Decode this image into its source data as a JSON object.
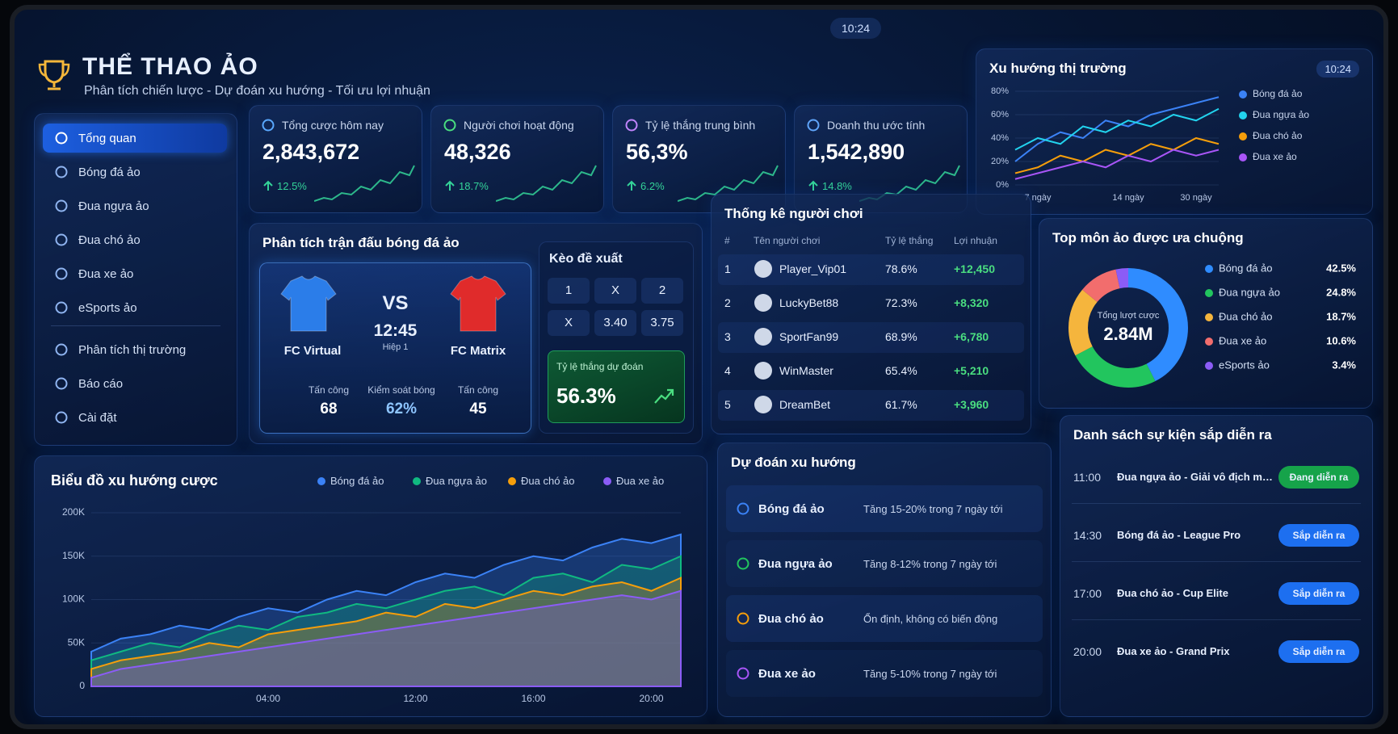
{
  "header": {
    "title": "THỂ THAO ẢO",
    "subtitle": "Phân tích chiến lược - Dự đoán xu hướng - Tối ưu lợi nhuận",
    "clock": "10:24"
  },
  "sidebar": {
    "items": [
      "Tổng quan",
      "Bóng đá ảo",
      "Đua ngựa ảo",
      "Đua chó ảo",
      "Đua xe ảo",
      "eSports ảo",
      "Phân tích thị trường",
      "Báo cáo",
      "Cài đặt"
    ]
  },
  "kpis": [
    {
      "label": "Tổng cược hôm nay",
      "value": "2,843,672",
      "change": "12.5%"
    },
    {
      "label": "Người chơi hoạt động",
      "value": "48,326",
      "change": "18.7%"
    },
    {
      "label": "Tỷ lệ thắng trung bình",
      "value": "56,3%",
      "change": "6.2%"
    },
    {
      "label": "Doanh thu ước tính",
      "value": "1,542,890",
      "change": "14.8%"
    }
  ],
  "market_trend": {
    "type": "line",
    "title": "Xu hướng thị trường",
    "clock": "10:24",
    "categories": [
      null,
      "7 ngày",
      null,
      null,
      null,
      "14 ngày",
      null,
      null,
      "30 ngày",
      null
    ],
    "ylim": [
      0,
      80
    ],
    "yticks": [
      {
        "value": 0,
        "label": "0%"
      },
      {
        "value": 20,
        "label": "20%"
      },
      {
        "value": 40,
        "label": "40%"
      },
      {
        "value": 60,
        "label": "60%"
      },
      {
        "value": 80,
        "label": "80%"
      }
    ],
    "grid": true,
    "series": [
      {
        "name": "Bóng đá ảo",
        "color": "#3b82f6",
        "values": [
          20,
          35,
          45,
          40,
          55,
          50,
          60,
          65,
          70,
          75
        ]
      },
      {
        "name": "Đua ngựa ảo",
        "color": "#22d3ee",
        "values": [
          30,
          40,
          35,
          50,
          45,
          55,
          50,
          60,
          55,
          65
        ]
      },
      {
        "name": "Đua chó ảo",
        "color": "#f59e0b",
        "values": [
          10,
          15,
          25,
          20,
          30,
          25,
          35,
          30,
          40,
          35
        ]
      },
      {
        "name": "Đua xe ảo",
        "color": "#a855f7",
        "values": [
          5,
          10,
          15,
          20,
          15,
          25,
          20,
          30,
          25,
          30
        ]
      }
    ]
  },
  "match": {
    "title": "Phân tích trận đấu bóng đá ảo",
    "home": "FC Virtual",
    "away": "FC Matrix",
    "vs": "VS",
    "time": "12:45",
    "period": "Hiệp 1",
    "stats": [
      {
        "label": "Tấn công",
        "value": "68"
      },
      {
        "label": "Kiểm soát bóng",
        "value": "62%"
      },
      {
        "label": "Tấn công",
        "value": "45"
      }
    ]
  },
  "odds": {
    "title": "Kèo đề xuất",
    "grid": [
      [
        "1",
        "X",
        "2"
      ],
      [
        "X",
        "3.40",
        "3.75"
      ]
    ],
    "prediction_label": "Tỷ lệ thắng dự đoán",
    "prediction": "56.3%"
  },
  "players": {
    "title": "Thống kê người chơi",
    "columns": [
      "#",
      "Tên người chơi",
      "Tỷ lệ thắng",
      "Lợi nhuận"
    ],
    "rows": [
      [
        "1",
        "Player_Vip01",
        "78.6%",
        "+12,450"
      ],
      [
        "2",
        "LuckyBet88",
        "72.3%",
        "+8,320"
      ],
      [
        "3",
        "SportFan99",
        "68.9%",
        "+6,780"
      ],
      [
        "4",
        "WinMaster",
        "65.4%",
        "+5,210"
      ],
      [
        "5",
        "DreamBet",
        "61.7%",
        "+3,960"
      ]
    ]
  },
  "top_games": {
    "type": "donut",
    "title": "Top môn ảo được ưa chuộng",
    "center_label": "Tổng lượt cược",
    "center_value": "2.84M",
    "names": [
      "Bóng đá ảo",
      "Đua ngựa ảo",
      "Đua chó ảo",
      "Đua xe ảo",
      "eSports ảo"
    ],
    "values": [
      42.5,
      24.8,
      18.7,
      10.6,
      3.4
    ],
    "value_labels": [
      "42.5%",
      "24.8%",
      "18.7%",
      "10.6%",
      "3.4%"
    ],
    "colors": [
      "#2f8cff",
      "#22c55e",
      "#f5b53d",
      "#f26d6d",
      "#8b5cf6"
    ]
  },
  "bet_trend": {
    "type": "area",
    "title": "Biểu đồ xu hướng cược",
    "categories": [
      null,
      null,
      null,
      null,
      null,
      null,
      "04:00",
      null,
      null,
      null,
      null,
      "12:00",
      null,
      null,
      null,
      "16:00",
      null,
      null,
      null,
      "20:00",
      null
    ],
    "ylim": [
      0,
      200000
    ],
    "yticks": [
      0,
      {
        "value": 50000,
        "label": "50K"
      },
      {
        "value": 100000,
        "label": "100K"
      },
      {
        "value": 150000,
        "label": "150K"
      },
      {
        "value": 200000,
        "label": "200K"
      }
    ],
    "grid": true,
    "series": [
      {
        "name": "Bóng đá ảo",
        "color": "#3b82f6",
        "values": [
          40000,
          55000,
          60000,
          70000,
          65000,
          80000,
          90000,
          85000,
          100000,
          110000,
          105000,
          120000,
          130000,
          125000,
          140000,
          150000,
          145000,
          160000,
          170000,
          165000,
          175000
        ]
      },
      {
        "name": "Đua ngựa ảo",
        "color": "#10b981",
        "values": [
          30000,
          40000,
          50000,
          45000,
          60000,
          70000,
          65000,
          80000,
          85000,
          95000,
          90000,
          100000,
          110000,
          115000,
          105000,
          125000,
          130000,
          120000,
          140000,
          135000,
          150000
        ]
      },
      {
        "name": "Đua chó ảo",
        "color": "#f59e0b",
        "values": [
          20000,
          30000,
          35000,
          40000,
          50000,
          45000,
          60000,
          65000,
          70000,
          75000,
          85000,
          80000,
          95000,
          90000,
          100000,
          110000,
          105000,
          115000,
          120000,
          110000,
          125000
        ]
      },
      {
        "name": "Đua xe ảo",
        "color": "#8b5cf6",
        "values": [
          10000,
          20000,
          25000,
          30000,
          35000,
          40000,
          45000,
          50000,
          55000,
          60000,
          65000,
          70000,
          75000,
          80000,
          85000,
          90000,
          95000,
          100000,
          105000,
          100000,
          110000
        ]
      }
    ]
  },
  "predictions": {
    "title": "Dự đoán xu hướng",
    "items": [
      {
        "name": "Bóng đá ảo",
        "text": "Tăng 15-20% trong 7 ngày tới"
      },
      {
        "name": "Đua ngựa ảo",
        "text": "Tăng 8-12% trong 7 ngày tới"
      },
      {
        "name": "Đua chó ảo",
        "text": "Ổn định, không có biến động"
      },
      {
        "name": "Đua xe ảo",
        "text": "Tăng 5-10% trong 7 ngày tới"
      }
    ]
  },
  "events": {
    "title": "Danh sách sự kiện sắp diễn ra",
    "items": [
      {
        "time": "11:00",
        "name": "Đua ngựa ảo - Giải vô địch mùa thu",
        "status": "Đang diễn ra"
      },
      {
        "time": "14:30",
        "name": "Bóng đá ảo - League Pro",
        "status": "Sắp diễn ra"
      },
      {
        "time": "17:00",
        "name": "Đua chó ảo - Cup Elite",
        "status": "Sắp diễn ra"
      },
      {
        "time": "20:00",
        "name": "Đua xe ảo - Grand Prix",
        "status": "Sắp diễn ra"
      }
    ]
  }
}
